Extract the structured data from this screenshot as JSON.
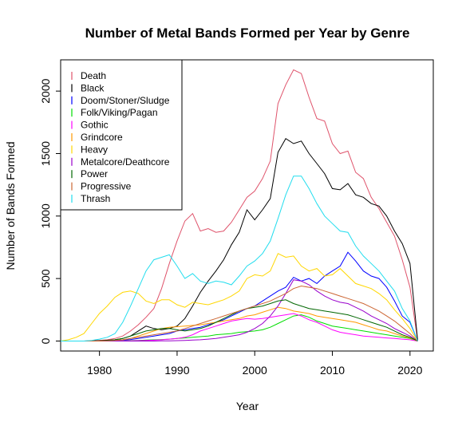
{
  "chart_data": {
    "type": "line",
    "title": "Number of Metal Bands Formed per Year by Genre",
    "xlabel": "Year",
    "ylabel": "Number of Bands Formed",
    "xlim": [
      1975,
      2023
    ],
    "ylim": [
      -80,
      2250
    ],
    "x_ticks": [
      1980,
      1990,
      2000,
      2010,
      2020
    ],
    "y_ticks": [
      0,
      500,
      1000,
      1500,
      2000
    ],
    "grid": false,
    "legend_position": "top-left",
    "x": [
      1975,
      1976,
      1977,
      1978,
      1979,
      1980,
      1981,
      1982,
      1983,
      1984,
      1985,
      1986,
      1987,
      1988,
      1989,
      1990,
      1991,
      1992,
      1993,
      1994,
      1995,
      1996,
      1997,
      1998,
      1999,
      2000,
      2001,
      2002,
      2003,
      2004,
      2005,
      2006,
      2007,
      2008,
      2009,
      2010,
      2011,
      2012,
      2013,
      2014,
      2015,
      2016,
      2017,
      2018,
      2019,
      2020,
      2021
    ],
    "series": [
      {
        "name": "Death",
        "color": "#DF536B",
        "values": [
          0,
          0,
          0,
          0,
          2,
          5,
          10,
          20,
          40,
          80,
          130,
          190,
          260,
          420,
          620,
          800,
          960,
          1020,
          880,
          900,
          870,
          880,
          950,
          1050,
          1150,
          1200,
          1300,
          1440,
          1900,
          2050,
          2170,
          2140,
          1950,
          1780,
          1760,
          1580,
          1500,
          1520,
          1350,
          1300,
          1150,
          1060,
          950,
          840,
          650,
          430,
          0
        ]
      },
      {
        "name": "Black",
        "color": "#000000",
        "values": [
          0,
          0,
          0,
          0,
          1,
          3,
          6,
          10,
          20,
          40,
          80,
          120,
          100,
          90,
          100,
          120,
          180,
          280,
          390,
          480,
          560,
          650,
          770,
          870,
          1050,
          970,
          1050,
          1140,
          1510,
          1620,
          1580,
          1600,
          1500,
          1420,
          1340,
          1220,
          1210,
          1260,
          1170,
          1150,
          1100,
          1080,
          1000,
          880,
          780,
          620,
          0
        ]
      },
      {
        "name": "Doom/Stoner/Sludge",
        "color": "#2297E6",
        "stroke": "#0000FF",
        "values": [
          0,
          0,
          0,
          0,
          0,
          0,
          2,
          5,
          8,
          12,
          20,
          30,
          40,
          50,
          60,
          80,
          90,
          100,
          110,
          130,
          150,
          170,
          200,
          230,
          260,
          280,
          320,
          360,
          400,
          430,
          510,
          480,
          500,
          460,
          520,
          560,
          600,
          710,
          640,
          560,
          520,
          500,
          430,
          320,
          200,
          150,
          0
        ]
      },
      {
        "name": "Folk/Viking/Pagan",
        "color": "#28E2E5",
        "stroke": "#00DD00",
        "values": [
          0,
          0,
          0,
          0,
          0,
          0,
          0,
          0,
          2,
          3,
          5,
          8,
          10,
          12,
          15,
          20,
          25,
          30,
          35,
          40,
          50,
          55,
          60,
          70,
          75,
          80,
          90,
          110,
          140,
          170,
          200,
          210,
          190,
          160,
          140,
          120,
          110,
          100,
          90,
          80,
          70,
          60,
          50,
          40,
          30,
          20,
          0
        ]
      },
      {
        "name": "Gothic",
        "color": "#CD0BBC",
        "stroke": "#FF00FF",
        "values": [
          0,
          0,
          0,
          0,
          0,
          0,
          0,
          0,
          1,
          2,
          3,
          5,
          7,
          10,
          15,
          20,
          30,
          50,
          80,
          100,
          120,
          140,
          160,
          170,
          180,
          175,
          180,
          190,
          200,
          210,
          220,
          200,
          170,
          150,
          120,
          90,
          70,
          60,
          50,
          40,
          35,
          30,
          25,
          20,
          15,
          10,
          0
        ]
      },
      {
        "name": "Grindcore",
        "color": "#F5C710",
        "stroke": "#FF9900",
        "values": [
          0,
          0,
          0,
          0,
          0,
          0,
          2,
          5,
          10,
          20,
          40,
          60,
          80,
          100,
          110,
          115,
          120,
          125,
          130,
          140,
          150,
          160,
          170,
          180,
          200,
          210,
          230,
          250,
          270,
          260,
          240,
          230,
          220,
          200,
          190,
          180,
          170,
          160,
          150,
          130,
          110,
          90,
          80,
          60,
          40,
          25,
          0
        ]
      },
      {
        "name": "Heavy",
        "color": "#FFE600",
        "stroke": "#FFD700",
        "values": [
          0,
          10,
          30,
          60,
          140,
          220,
          280,
          350,
          390,
          400,
          380,
          320,
          300,
          330,
          330,
          290,
          270,
          310,
          300,
          290,
          310,
          330,
          360,
          400,
          500,
          530,
          520,
          560,
          700,
          670,
          680,
          600,
          560,
          580,
          520,
          530,
          580,
          520,
          460,
          440,
          420,
          380,
          330,
          250,
          180,
          100,
          0
        ]
      },
      {
        "name": "Metalcore/Deathcore",
        "color": "#9E9E9E",
        "stroke": "#9900CC",
        "values": [
          0,
          0,
          0,
          0,
          0,
          0,
          0,
          0,
          0,
          0,
          0,
          0,
          0,
          1,
          2,
          3,
          5,
          8,
          10,
          15,
          20,
          30,
          40,
          50,
          70,
          100,
          140,
          200,
          280,
          380,
          490,
          480,
          450,
          400,
          360,
          330,
          310,
          300,
          270,
          240,
          200,
          170,
          140,
          100,
          70,
          40,
          0
        ]
      },
      {
        "name": "Power",
        "color": "#61D04F",
        "stroke": "#006600",
        "values": [
          0,
          0,
          0,
          0,
          0,
          0,
          5,
          10,
          20,
          40,
          60,
          80,
          90,
          100,
          100,
          90,
          80,
          90,
          100,
          120,
          150,
          180,
          210,
          240,
          260,
          270,
          280,
          300,
          320,
          330,
          300,
          280,
          260,
          250,
          240,
          230,
          220,
          210,
          190,
          170,
          150,
          130,
          110,
          80,
          50,
          30,
          0
        ]
      },
      {
        "name": "Progressive",
        "color": "#B05F3C",
        "stroke": "#CC6633",
        "values": [
          0,
          0,
          0,
          0,
          0,
          0,
          2,
          5,
          10,
          20,
          30,
          40,
          50,
          60,
          70,
          80,
          100,
          120,
          140,
          160,
          180,
          200,
          220,
          240,
          260,
          280,
          300,
          320,
          350,
          380,
          420,
          440,
          430,
          420,
          400,
          380,
          360,
          340,
          320,
          300,
          270,
          240,
          200,
          160,
          110,
          60,
          0
        ]
      },
      {
        "name": "Thrash",
        "color": "#00FFFF",
        "stroke": "#22DDEE",
        "values": [
          0,
          0,
          0,
          0,
          5,
          15,
          30,
          60,
          150,
          280,
          420,
          560,
          650,
          670,
          690,
          600,
          500,
          540,
          480,
          460,
          480,
          470,
          450,
          520,
          600,
          640,
          700,
          800,
          980,
          1170,
          1320,
          1320,
          1220,
          1100,
          1000,
          940,
          880,
          870,
          760,
          680,
          620,
          560,
          480,
          400,
          260,
          160,
          0
        ]
      }
    ]
  }
}
